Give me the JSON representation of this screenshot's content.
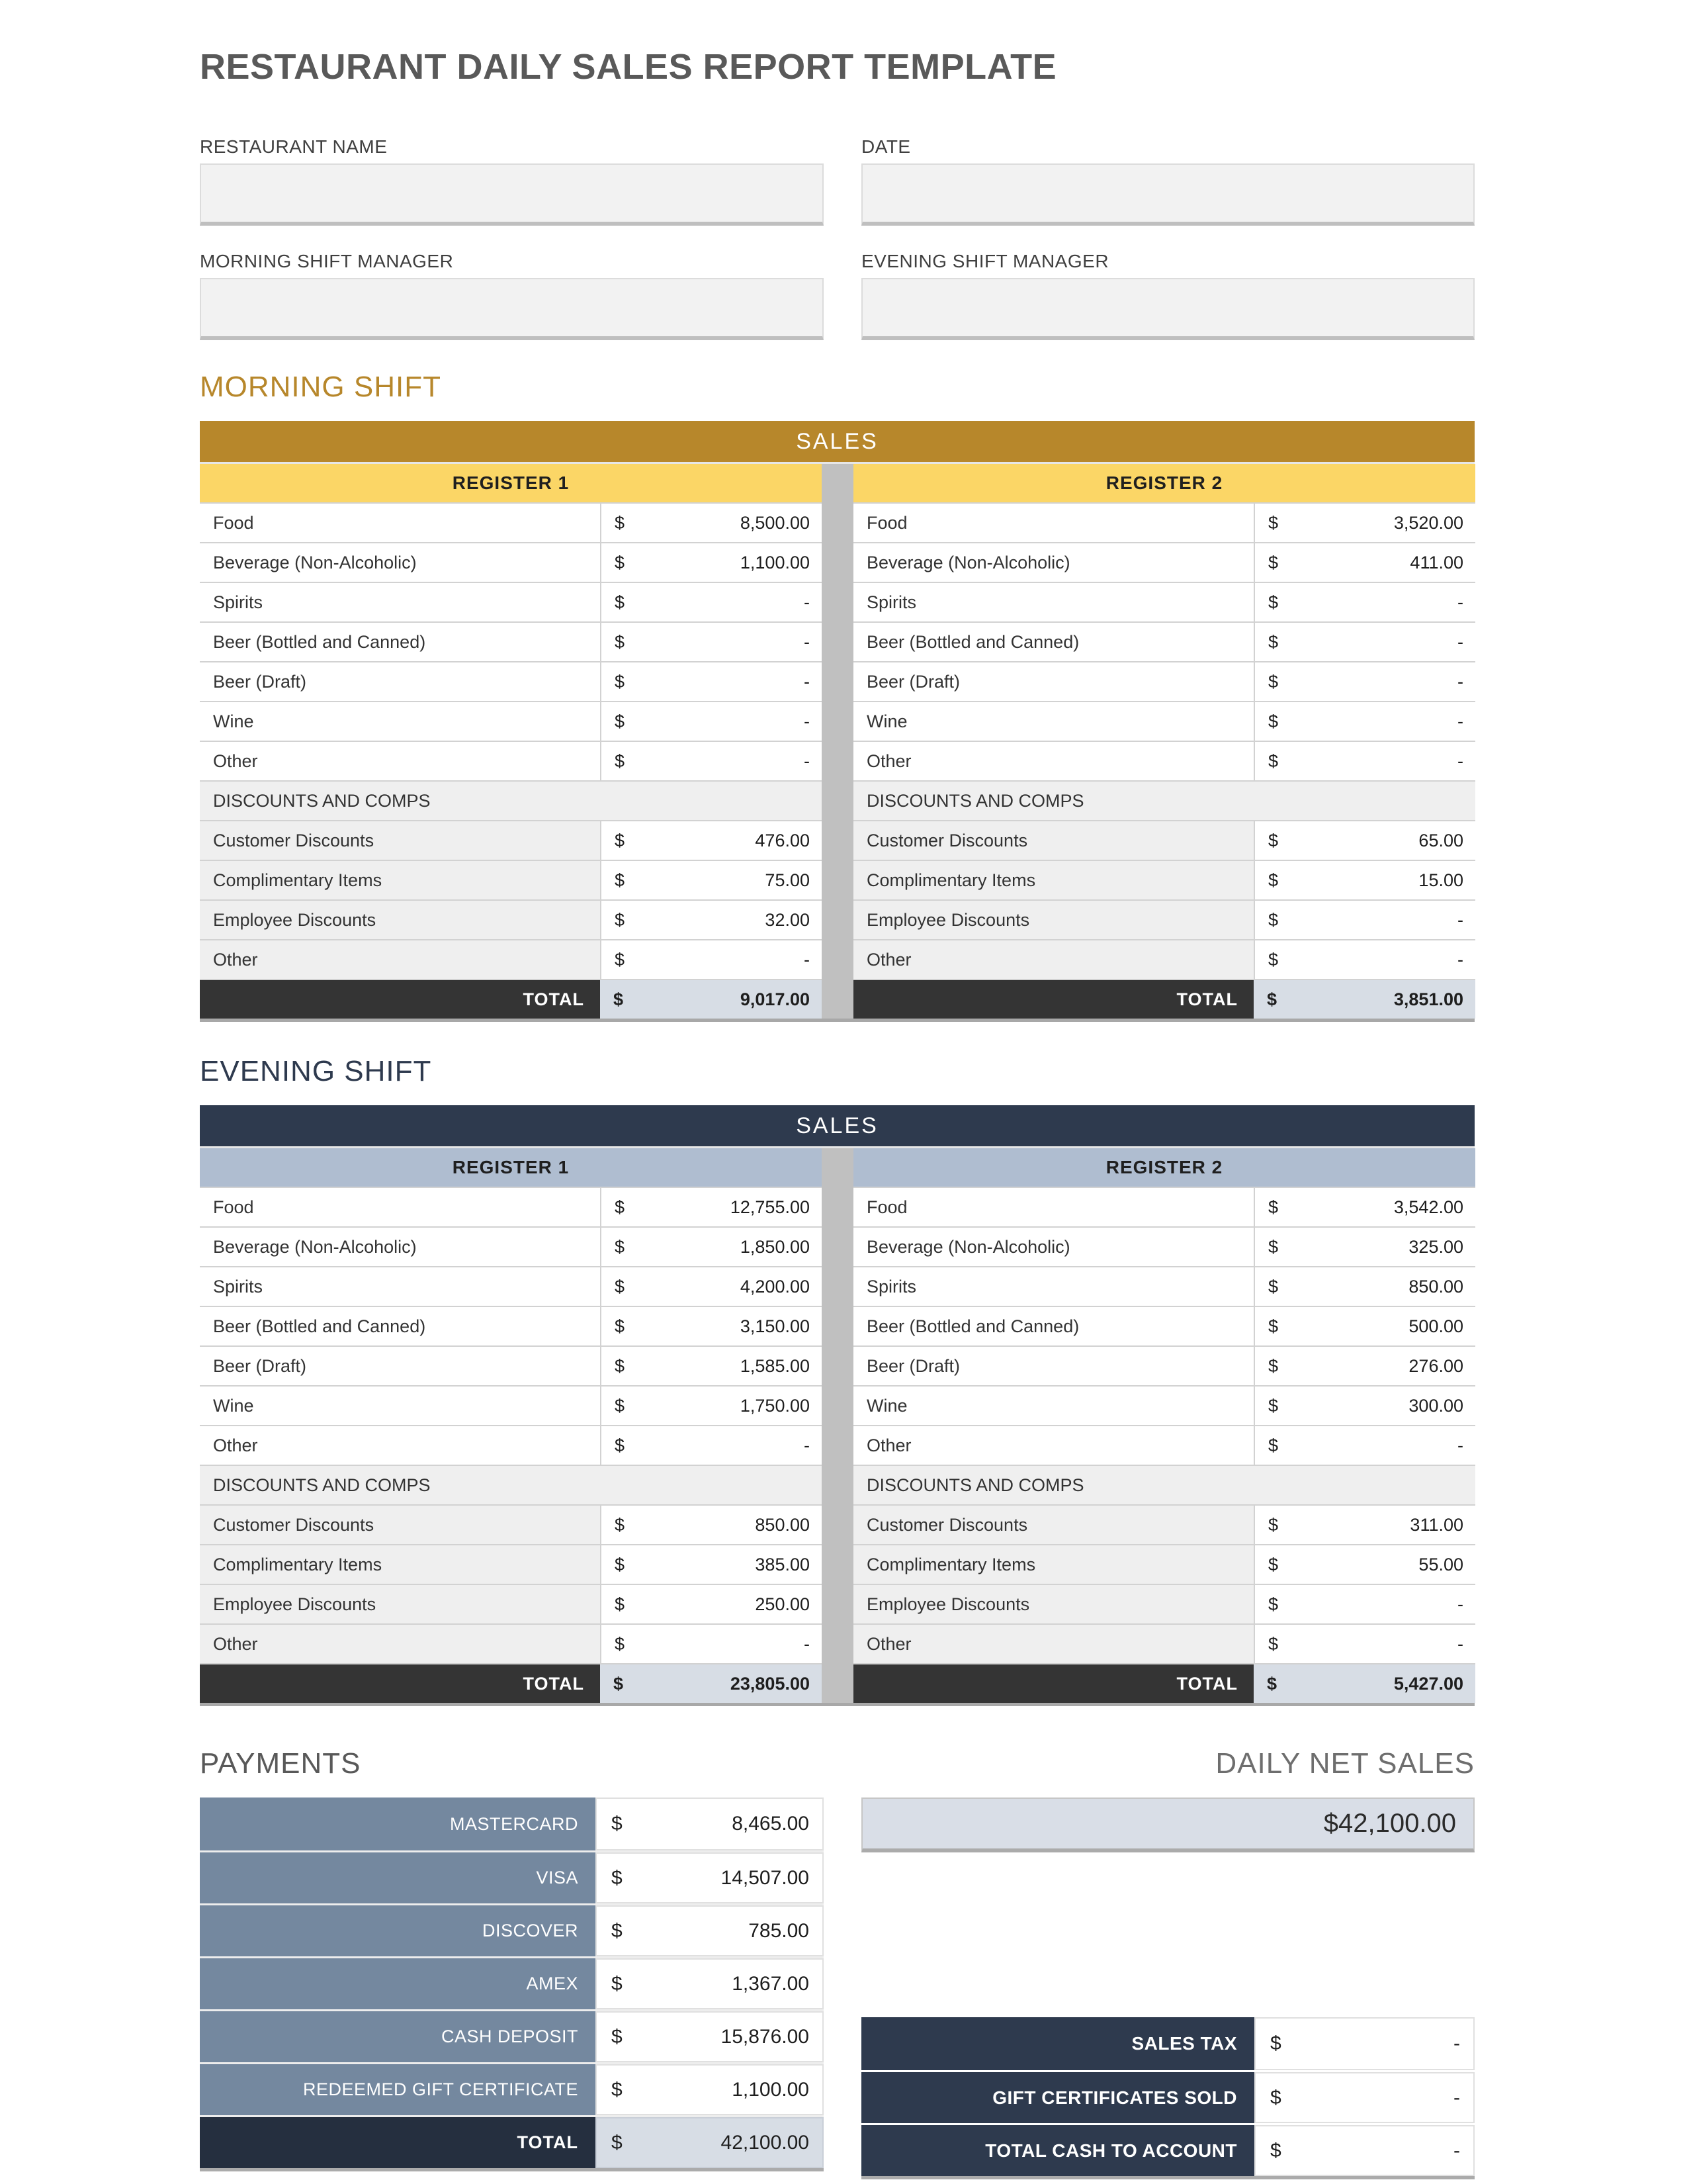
{
  "page": {
    "title": "RESTAURANT DAILY SALES REPORT TEMPLATE"
  },
  "form": {
    "fields": [
      {
        "label": "RESTAURANT NAME",
        "value": ""
      },
      {
        "label": "DATE",
        "value": ""
      },
      {
        "label": "MORNING SHIFT MANAGER",
        "value": ""
      },
      {
        "label": "EVENING SHIFT MANAGER",
        "value": ""
      }
    ]
  },
  "shifts": [
    {
      "heading": "MORNING SHIFT",
      "sales_header": "SALES",
      "registers": [
        {
          "header": "REGISTER 1",
          "items": [
            {
              "label": "Food",
              "currency": "$",
              "amount": "8,500.00"
            },
            {
              "label": "Beverage (Non-Alcoholic)",
              "currency": "$",
              "amount": "1,100.00"
            },
            {
              "label": "Spirits",
              "currency": "$",
              "amount": "-"
            },
            {
              "label": "Beer (Bottled and Canned)",
              "currency": "$",
              "amount": "-"
            },
            {
              "label": "Beer (Draft)",
              "currency": "$",
              "amount": "-"
            },
            {
              "label": "Wine",
              "currency": "$",
              "amount": "-"
            },
            {
              "label": "Other",
              "currency": "$",
              "amount": "-"
            }
          ],
          "discounts_header": "DISCOUNTS AND COMPS",
          "discounts": [
            {
              "label": "Customer Discounts",
              "currency": "$",
              "amount": "476.00"
            },
            {
              "label": "Complimentary Items",
              "currency": "$",
              "amount": "75.00"
            },
            {
              "label": "Employee Discounts",
              "currency": "$",
              "amount": "32.00"
            },
            {
              "label": "Other",
              "currency": "$",
              "amount": "-"
            }
          ],
          "total": {
            "label": "TOTAL",
            "currency": "$",
            "amount": "9,017.00"
          }
        },
        {
          "header": "REGISTER 2",
          "items": [
            {
              "label": "Food",
              "currency": "$",
              "amount": "3,520.00"
            },
            {
              "label": "Beverage (Non-Alcoholic)",
              "currency": "$",
              "amount": "411.00"
            },
            {
              "label": "Spirits",
              "currency": "$",
              "amount": "-"
            },
            {
              "label": "Beer (Bottled and Canned)",
              "currency": "$",
              "amount": "-"
            },
            {
              "label": "Beer (Draft)",
              "currency": "$",
              "amount": "-"
            },
            {
              "label": "Wine",
              "currency": "$",
              "amount": "-"
            },
            {
              "label": "Other",
              "currency": "$",
              "amount": "-"
            }
          ],
          "discounts_header": "DISCOUNTS AND COMPS",
          "discounts": [
            {
              "label": "Customer Discounts",
              "currency": "$",
              "amount": "65.00"
            },
            {
              "label": "Complimentary Items",
              "currency": "$",
              "amount": "15.00"
            },
            {
              "label": "Employee Discounts",
              "currency": "$",
              "amount": "-"
            },
            {
              "label": "Other",
              "currency": "$",
              "amount": "-"
            }
          ],
          "total": {
            "label": "TOTAL",
            "currency": "$",
            "amount": "3,851.00"
          }
        }
      ]
    },
    {
      "heading": "EVENING SHIFT",
      "sales_header": "SALES",
      "registers": [
        {
          "header": "REGISTER 1",
          "items": [
            {
              "label": "Food",
              "currency": "$",
              "amount": "12,755.00"
            },
            {
              "label": "Beverage (Non-Alcoholic)",
              "currency": "$",
              "amount": "1,850.00"
            },
            {
              "label": "Spirits",
              "currency": "$",
              "amount": "4,200.00"
            },
            {
              "label": "Beer (Bottled and Canned)",
              "currency": "$",
              "amount": "3,150.00"
            },
            {
              "label": "Beer (Draft)",
              "currency": "$",
              "amount": "1,585.00"
            },
            {
              "label": "Wine",
              "currency": "$",
              "amount": "1,750.00"
            },
            {
              "label": "Other",
              "currency": "$",
              "amount": "-"
            }
          ],
          "discounts_header": "DISCOUNTS AND COMPS",
          "discounts": [
            {
              "label": "Customer Discounts",
              "currency": "$",
              "amount": "850.00"
            },
            {
              "label": "Complimentary Items",
              "currency": "$",
              "amount": "385.00"
            },
            {
              "label": "Employee Discounts",
              "currency": "$",
              "amount": "250.00"
            },
            {
              "label": "Other",
              "currency": "$",
              "amount": "-"
            }
          ],
          "total": {
            "label": "TOTAL",
            "currency": "$",
            "amount": "23,805.00"
          }
        },
        {
          "header": "REGISTER 2",
          "items": [
            {
              "label": "Food",
              "currency": "$",
              "amount": "3,542.00"
            },
            {
              "label": "Beverage (Non-Alcoholic)",
              "currency": "$",
              "amount": "325.00"
            },
            {
              "label": "Spirits",
              "currency": "$",
              "amount": "850.00"
            },
            {
              "label": "Beer (Bottled and Canned)",
              "currency": "$",
              "amount": "500.00"
            },
            {
              "label": "Beer (Draft)",
              "currency": "$",
              "amount": "276.00"
            },
            {
              "label": "Wine",
              "currency": "$",
              "amount": "300.00"
            },
            {
              "label": "Other",
              "currency": "$",
              "amount": "-"
            }
          ],
          "discounts_header": "DISCOUNTS AND COMPS",
          "discounts": [
            {
              "label": "Customer Discounts",
              "currency": "$",
              "amount": "311.00"
            },
            {
              "label": "Complimentary Items",
              "currency": "$",
              "amount": "55.00"
            },
            {
              "label": "Employee Discounts",
              "currency": "$",
              "amount": "-"
            },
            {
              "label": "Other",
              "currency": "$",
              "amount": "-"
            }
          ],
          "total": {
            "label": "TOTAL",
            "currency": "$",
            "amount": "5,427.00"
          }
        }
      ]
    }
  ],
  "payments": {
    "heading": "PAYMENTS",
    "rows": [
      {
        "label": "MASTERCARD",
        "currency": "$",
        "amount": "8,465.00"
      },
      {
        "label": "VISA",
        "currency": "$",
        "amount": "14,507.00"
      },
      {
        "label": "DISCOVER",
        "currency": "$",
        "amount": "785.00"
      },
      {
        "label": "AMEX",
        "currency": "$",
        "amount": "1,367.00"
      },
      {
        "label": "CASH DEPOSIT",
        "currency": "$",
        "amount": "15,876.00"
      },
      {
        "label": "REDEEMED GIFT CERTIFICATE",
        "currency": "$",
        "amount": "1,100.00"
      }
    ],
    "total": {
      "label": "TOTAL",
      "currency": "$",
      "amount": "42,100.00"
    }
  },
  "daily_net_sales": {
    "heading": "DAILY NET SALES",
    "value": "$42,100.00"
  },
  "summary": {
    "rows": [
      {
        "label": "SALES TAX",
        "currency": "$",
        "amount": "-"
      },
      {
        "label": "GIFT CERTIFICATES SOLD",
        "currency": "$",
        "amount": "-"
      },
      {
        "label": "TOTAL CASH TO ACCOUNT",
        "currency": "$",
        "amount": "-"
      }
    ]
  },
  "colors": {
    "gold": "#B7872B",
    "gold_light": "#FBD666",
    "navy": "#2E3A4E",
    "blue_light": "#AFBDD0",
    "slate": "#74889F",
    "total_dark": "#343434",
    "total_navy": "#252F3F",
    "total_value_bg": "#D7DDE5",
    "discount_bg": "#EFEFEF",
    "divider_strip": "#C0C0C0",
    "input_bg": "#F2F2F2"
  }
}
